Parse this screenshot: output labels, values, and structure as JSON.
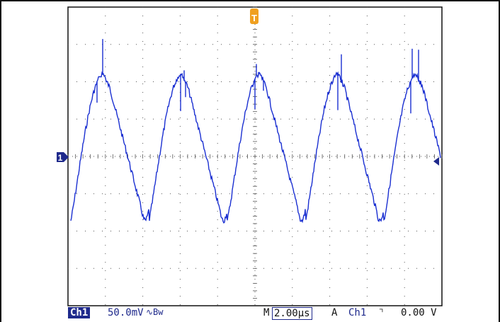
{
  "colors": {
    "trace": "#1a2fd1",
    "grid": "#555555",
    "frame": "#111111",
    "marker": "#1f2a8c",
    "trigger": "#f0a020"
  },
  "screen": {
    "h_divisions": 10,
    "v_divisions": 8,
    "trigger_marker_label": "T",
    "channel_marker_label": "1"
  },
  "status_bar": {
    "channel_badge": "Ch1",
    "volts_per_div": "50.0mV",
    "coupling_icon": "ac-coupling-bw-icon",
    "coupling_symbol": "∿Bw",
    "timebase_prefix": "M",
    "timebase_value": "2.00µs",
    "acq_mode": "A",
    "trigger_channel": "Ch1",
    "trigger_slope_icon": "falling-edge-icon",
    "trigger_slope_symbol": "⌝",
    "trigger_level": "0.00 V"
  }
}
